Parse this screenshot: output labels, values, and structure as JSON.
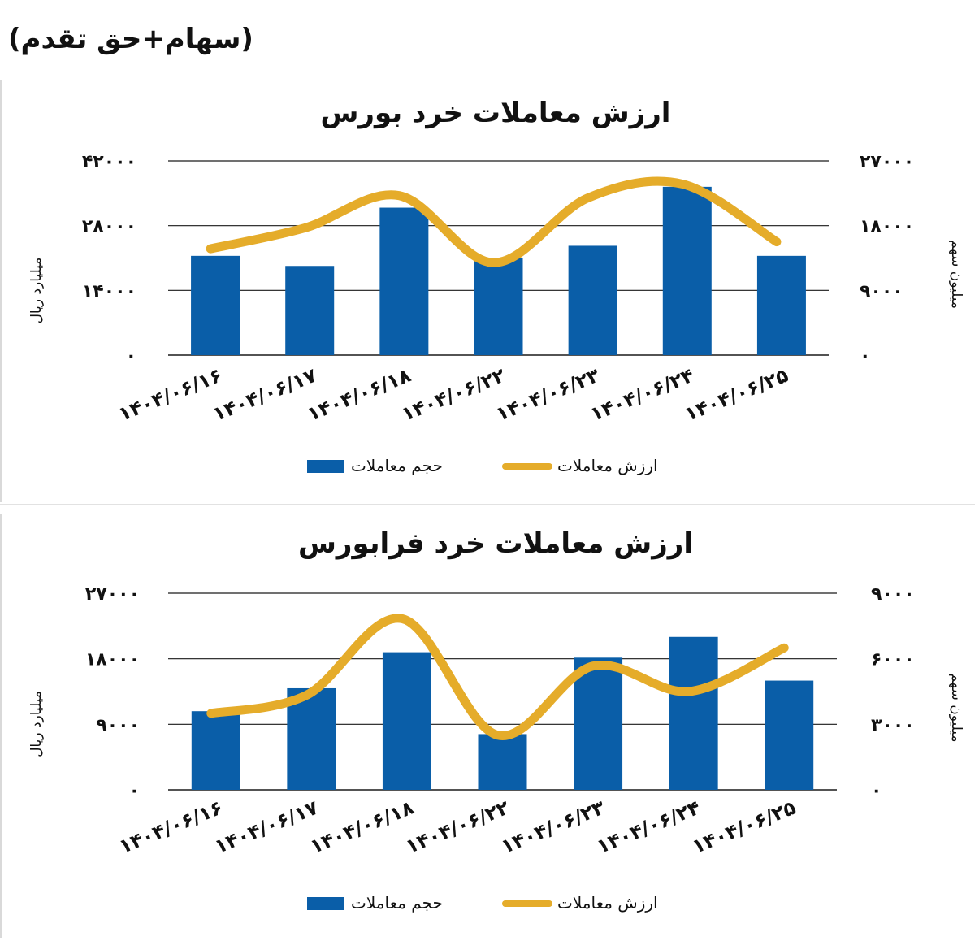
{
  "page": {
    "header_note": "(سهام+حق تقدم)"
  },
  "colors": {
    "bar": "#0a5ea8",
    "line": "#e5ac2a",
    "grid": "#1a1a1a",
    "text": "#111111"
  },
  "chart_data": [
    {
      "type": "bar",
      "title": "ارزش معاملات خرد بورس",
      "categories": [
        "۱۴۰۴/۰۶/۱۶",
        "۱۴۰۴/۰۶/۱۷",
        "۱۴۰۴/۰۶/۱۸",
        "۱۴۰۴/۰۶/۲۲",
        "۱۴۰۴/۰۶/۲۳",
        "۱۴۰۴/۰۶/۲۴",
        "۱۴۰۴/۰۶/۲۵"
      ],
      "ylabel_left": "میلیارد ریال",
      "ylabel_right": "میلیون سهم",
      "ylim_left": [
        0,
        42000
      ],
      "ylim_right": [
        0,
        27000
      ],
      "left_ticks": [
        0,
        14000,
        28000,
        42000
      ],
      "right_ticks": [
        0,
        9000,
        18000,
        27000
      ],
      "left_tick_labels": [
        "۰",
        "۱۴۰۰۰",
        "۲۸۰۰۰",
        "۴۲۰۰۰"
      ],
      "right_tick_labels": [
        "۰",
        "۹۰۰۰",
        "۱۸۰۰۰",
        "۲۷۰۰۰"
      ],
      "series": [
        {
          "name": "حجم معاملات",
          "kind": "bar",
          "axis": "right",
          "values": [
            13800,
            12400,
            20500,
            13500,
            15200,
            23400,
            13800
          ]
        },
        {
          "name": "ارزش معاملات",
          "kind": "line",
          "axis": "left",
          "values": [
            23000,
            27500,
            34500,
            20000,
            34000,
            37000,
            24500
          ]
        }
      ],
      "legend_position": "bottom"
    },
    {
      "type": "bar",
      "title": "ارزش معاملات خرد فرابورس",
      "categories": [
        "۱۴۰۴/۰۶/۱۶",
        "۱۴۰۴/۰۶/۱۷",
        "۱۴۰۴/۰۶/۱۸",
        "۱۴۰۴/۰۶/۲۲",
        "۱۴۰۴/۰۶/۲۳",
        "۱۴۰۴/۰۶/۲۴",
        "۱۴۰۴/۰۶/۲۵"
      ],
      "ylabel_left": "میلیارد ریال",
      "ylabel_right": "میلیون سهم",
      "ylim_left": [
        0,
        27000
      ],
      "ylim_right": [
        0,
        9000
      ],
      "left_ticks": [
        0,
        9000,
        18000,
        27000
      ],
      "right_ticks": [
        0,
        3000,
        6000,
        9000
      ],
      "left_tick_labels": [
        "۰",
        "۹۰۰۰",
        "۱۸۰۰۰",
        "۲۷۰۰۰"
      ],
      "right_tick_labels": [
        "۰",
        "۳۰۰۰",
        "۶۰۰۰",
        "۹۰۰۰"
      ],
      "series": [
        {
          "name": "حجم معاملات",
          "kind": "bar",
          "axis": "right",
          "values": [
            3600,
            4650,
            6300,
            2550,
            6050,
            7000,
            5000
          ]
        },
        {
          "name": "ارزش معاملات",
          "kind": "line",
          "axis": "left",
          "values": [
            10500,
            13000,
            23500,
            7500,
            17000,
            13500,
            19500
          ]
        }
      ],
      "legend_position": "bottom"
    }
  ]
}
